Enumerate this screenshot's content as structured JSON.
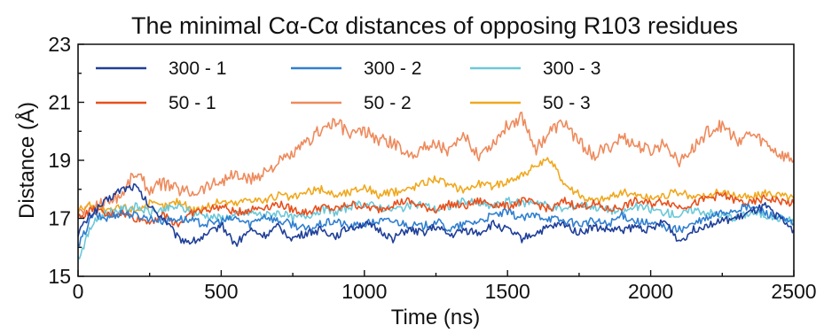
{
  "chart_data": {
    "type": "line",
    "title": "The minimal Cα-Cα distances of opposing R103 residues",
    "xlabel": "Time (ns)",
    "ylabel": "Distance (Å)",
    "xlim": [
      0,
      2500
    ],
    "ylim": [
      15,
      23
    ],
    "xticks": [
      0,
      500,
      1000,
      1500,
      2000,
      2500
    ],
    "yticks": [
      15,
      17,
      19,
      21,
      23
    ],
    "grid": false,
    "legend_position": "top",
    "series": [
      {
        "name": "300 - 1",
        "color": "#1f3f99",
        "x": [
          0,
          50,
          100,
          150,
          200,
          250,
          300,
          350,
          400,
          450,
          500,
          550,
          600,
          650,
          700,
          750,
          800,
          850,
          900,
          950,
          1000,
          1050,
          1100,
          1150,
          1200,
          1250,
          1300,
          1350,
          1400,
          1450,
          1500,
          1550,
          1600,
          1650,
          1700,
          1750,
          1800,
          1850,
          1900,
          1950,
          2000,
          2050,
          2100,
          2150,
          2200,
          2250,
          2300,
          2350,
          2400,
          2450,
          2500
        ],
        "values": [
          16.5,
          17.2,
          17.6,
          18.0,
          18.1,
          17.4,
          17.0,
          16.3,
          16.2,
          16.4,
          16.8,
          16.1,
          16.6,
          16.4,
          16.7,
          16.3,
          16.5,
          16.6,
          16.4,
          16.7,
          16.8,
          16.6,
          16.3,
          16.6,
          16.5,
          16.7,
          16.4,
          16.6,
          16.5,
          16.8,
          16.6,
          16.3,
          16.5,
          16.7,
          16.8,
          16.5,
          16.7,
          16.6,
          16.6,
          16.7,
          16.6,
          16.9,
          16.2,
          16.6,
          16.8,
          16.9,
          17.0,
          17.2,
          17.4,
          17.0,
          16.6
        ]
      },
      {
        "name": "300 - 2",
        "color": "#2f7fd0",
        "x": [
          0,
          50,
          100,
          150,
          200,
          250,
          300,
          350,
          400,
          450,
          500,
          550,
          600,
          650,
          700,
          750,
          800,
          850,
          900,
          950,
          1000,
          1050,
          1100,
          1150,
          1200,
          1250,
          1300,
          1350,
          1400,
          1450,
          1500,
          1550,
          1600,
          1650,
          1700,
          1750,
          1800,
          1850,
          1900,
          1950,
          2000,
          2050,
          2100,
          2150,
          2200,
          2250,
          2300,
          2350,
          2400,
          2450,
          2500
        ],
        "values": [
          16.0,
          17.1,
          17.0,
          17.2,
          17.1,
          17.0,
          16.9,
          17.0,
          16.9,
          16.8,
          16.9,
          17.0,
          16.8,
          17.1,
          16.9,
          16.8,
          16.6,
          16.8,
          16.9,
          16.7,
          16.8,
          16.9,
          16.9,
          16.8,
          16.7,
          16.9,
          16.6,
          16.8,
          16.9,
          17.1,
          17.2,
          17.0,
          17.1,
          17.0,
          16.9,
          16.8,
          16.9,
          16.8,
          17.1,
          16.9,
          16.8,
          16.7,
          16.6,
          16.8,
          17.0,
          17.2,
          17.3,
          17.4,
          17.2,
          17.0,
          16.8
        ]
      },
      {
        "name": "300 - 3",
        "color": "#6cc8d8",
        "x": [
          0,
          50,
          100,
          150,
          200,
          250,
          300,
          350,
          400,
          450,
          500,
          550,
          600,
          650,
          700,
          750,
          800,
          850,
          900,
          950,
          1000,
          1050,
          1100,
          1150,
          1200,
          1250,
          1300,
          1350,
          1400,
          1450,
          1500,
          1550,
          1600,
          1650,
          1700,
          1750,
          1800,
          1850,
          1900,
          1950,
          2000,
          2050,
          2100,
          2150,
          2200,
          2250,
          2300,
          2350,
          2400,
          2450,
          2500
        ],
        "values": [
          15.6,
          16.8,
          17.2,
          17.3,
          17.4,
          17.2,
          17.3,
          17.4,
          17.2,
          17.1,
          17.0,
          17.1,
          17.2,
          17.1,
          17.2,
          17.0,
          17.1,
          17.3,
          17.2,
          17.4,
          17.5,
          17.4,
          17.3,
          17.4,
          17.5,
          17.3,
          17.4,
          17.6,
          17.5,
          17.4,
          17.6,
          17.5,
          17.6,
          17.4,
          17.3,
          17.5,
          17.4,
          17.3,
          17.2,
          17.4,
          17.3,
          17.2,
          17.1,
          17.3,
          17.2,
          17.1,
          17.0,
          17.2,
          17.1,
          17.0,
          16.9
        ]
      },
      {
        "name": "50 - 1",
        "color": "#e8501c",
        "x": [
          0,
          50,
          100,
          150,
          200,
          250,
          300,
          350,
          400,
          450,
          500,
          550,
          600,
          650,
          700,
          750,
          800,
          850,
          900,
          950,
          1000,
          1050,
          1100,
          1150,
          1200,
          1250,
          1300,
          1350,
          1400,
          1450,
          1500,
          1550,
          1600,
          1650,
          1700,
          1750,
          1800,
          1850,
          1900,
          1950,
          2000,
          2050,
          2100,
          2150,
          2200,
          2250,
          2300,
          2350,
          2400,
          2450,
          2500
        ],
        "values": [
          17.0,
          17.3,
          17.1,
          17.2,
          17.0,
          16.9,
          17.1,
          16.8,
          17.2,
          17.3,
          17.4,
          17.2,
          17.3,
          17.4,
          17.5,
          17.3,
          17.2,
          17.4,
          17.3,
          17.5,
          17.4,
          17.3,
          17.5,
          17.6,
          17.4,
          17.3,
          17.5,
          17.4,
          17.6,
          17.5,
          17.4,
          17.6,
          17.5,
          17.3,
          17.6,
          17.4,
          17.5,
          17.3,
          17.4,
          17.6,
          17.5,
          17.6,
          17.4,
          17.5,
          17.7,
          17.8,
          17.6,
          17.5,
          17.7,
          17.6,
          17.5
        ]
      },
      {
        "name": "50 - 2",
        "color": "#ee8a5c",
        "x": [
          0,
          50,
          100,
          150,
          200,
          250,
          300,
          350,
          400,
          450,
          500,
          550,
          600,
          650,
          700,
          750,
          800,
          850,
          900,
          950,
          1000,
          1050,
          1100,
          1150,
          1200,
          1250,
          1300,
          1350,
          1400,
          1450,
          1500,
          1550,
          1600,
          1650,
          1700,
          1750,
          1800,
          1850,
          1900,
          1950,
          2000,
          2050,
          2100,
          2150,
          2200,
          2250,
          2300,
          2350,
          2400,
          2450,
          2500
        ],
        "values": [
          17.2,
          17.4,
          17.6,
          17.8,
          18.6,
          18.0,
          18.2,
          18.0,
          17.9,
          18.1,
          18.3,
          18.5,
          18.3,
          18.6,
          18.9,
          19.2,
          19.6,
          20.1,
          20.3,
          19.9,
          20.0,
          19.7,
          19.6,
          19.2,
          19.4,
          19.6,
          19.3,
          19.8,
          19.2,
          19.6,
          20.2,
          20.5,
          19.4,
          20.0,
          20.3,
          19.6,
          19.2,
          19.4,
          19.8,
          19.5,
          19.3,
          19.6,
          19.0,
          19.4,
          20.0,
          20.2,
          19.7,
          19.9,
          19.6,
          19.2,
          19.0
        ]
      },
      {
        "name": "50 - 3",
        "color": "#f0a81e",
        "x": [
          0,
          50,
          100,
          150,
          200,
          250,
          300,
          350,
          400,
          450,
          500,
          550,
          600,
          650,
          700,
          750,
          800,
          850,
          900,
          950,
          1000,
          1050,
          1100,
          1150,
          1200,
          1250,
          1300,
          1350,
          1400,
          1450,
          1500,
          1550,
          1600,
          1650,
          1700,
          1750,
          1800,
          1850,
          1900,
          1950,
          2000,
          2050,
          2100,
          2150,
          2200,
          2250,
          2300,
          2350,
          2400,
          2450,
          2500
        ],
        "values": [
          17.3,
          17.5,
          17.2,
          17.4,
          17.3,
          17.5,
          17.4,
          17.6,
          17.3,
          17.4,
          17.6,
          17.5,
          17.7,
          17.6,
          17.8,
          17.7,
          17.9,
          18.0,
          17.8,
          17.9,
          18.1,
          17.8,
          17.9,
          18.0,
          18.2,
          18.4,
          18.1,
          18.0,
          18.2,
          18.1,
          18.3,
          18.5,
          18.8,
          19.0,
          18.2,
          17.8,
          17.6,
          17.7,
          17.9,
          17.8,
          17.7,
          17.8,
          17.9,
          17.7,
          17.8,
          17.9,
          17.8,
          17.7,
          17.9,
          17.8,
          17.7
        ]
      }
    ]
  }
}
